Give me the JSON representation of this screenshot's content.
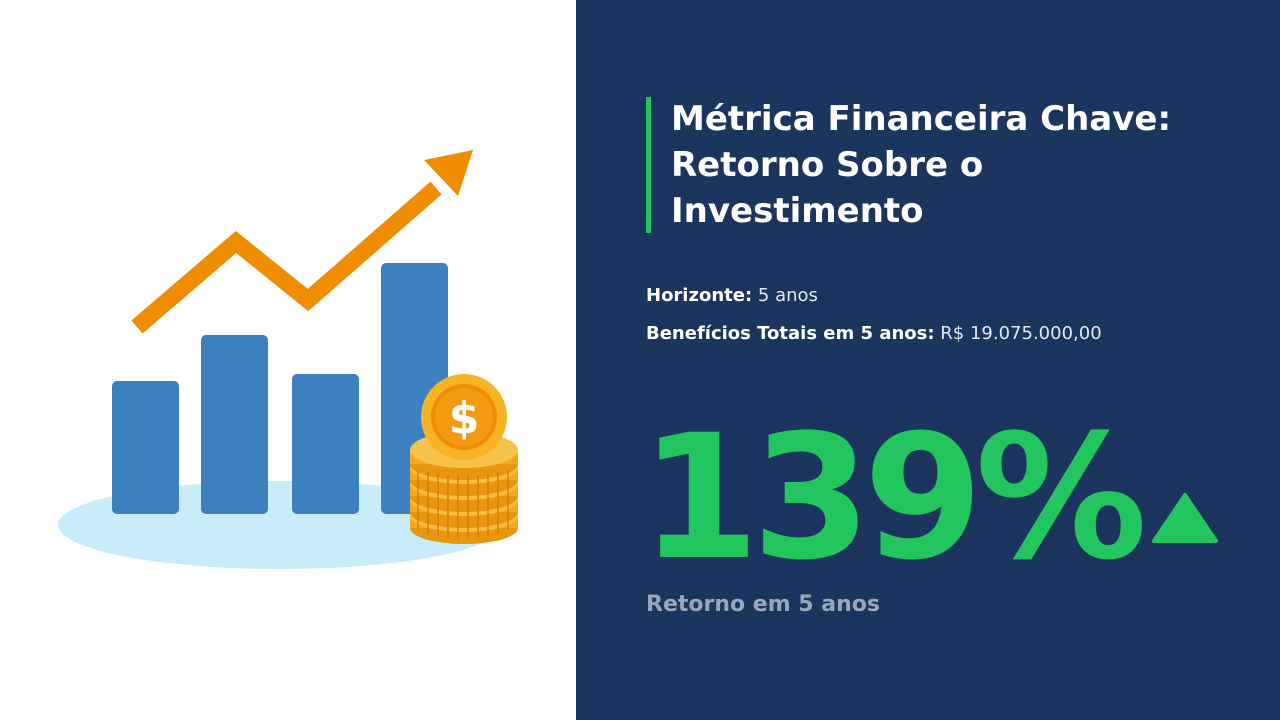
{
  "slide": {
    "title": "Métrica Financeira Chave: Retorno Sobre o Investimento",
    "info": [
      {
        "label": "Horizonte:",
        "value": "5 anos"
      },
      {
        "label": "Benefícios Totais em 5 anos:",
        "value": "R$ 19.075.000,00"
      }
    ],
    "metric": {
      "value": "139%",
      "caption": "Retorno em 5 anos",
      "trend": "up-triangle-icon"
    }
  },
  "illustration": {
    "name": "growth-chart-coins-illustration",
    "currency_symbol": "$"
  },
  "colors": {
    "panel_bg": "#1c355e",
    "accent_green": "#22c55e",
    "bar_blue": "#3d80bf",
    "arrow_orange": "#f08c00",
    "coin_gold": "#f6b324",
    "ground_blue": "#c9ecfa",
    "caption_gray": "#9aa6bb"
  }
}
